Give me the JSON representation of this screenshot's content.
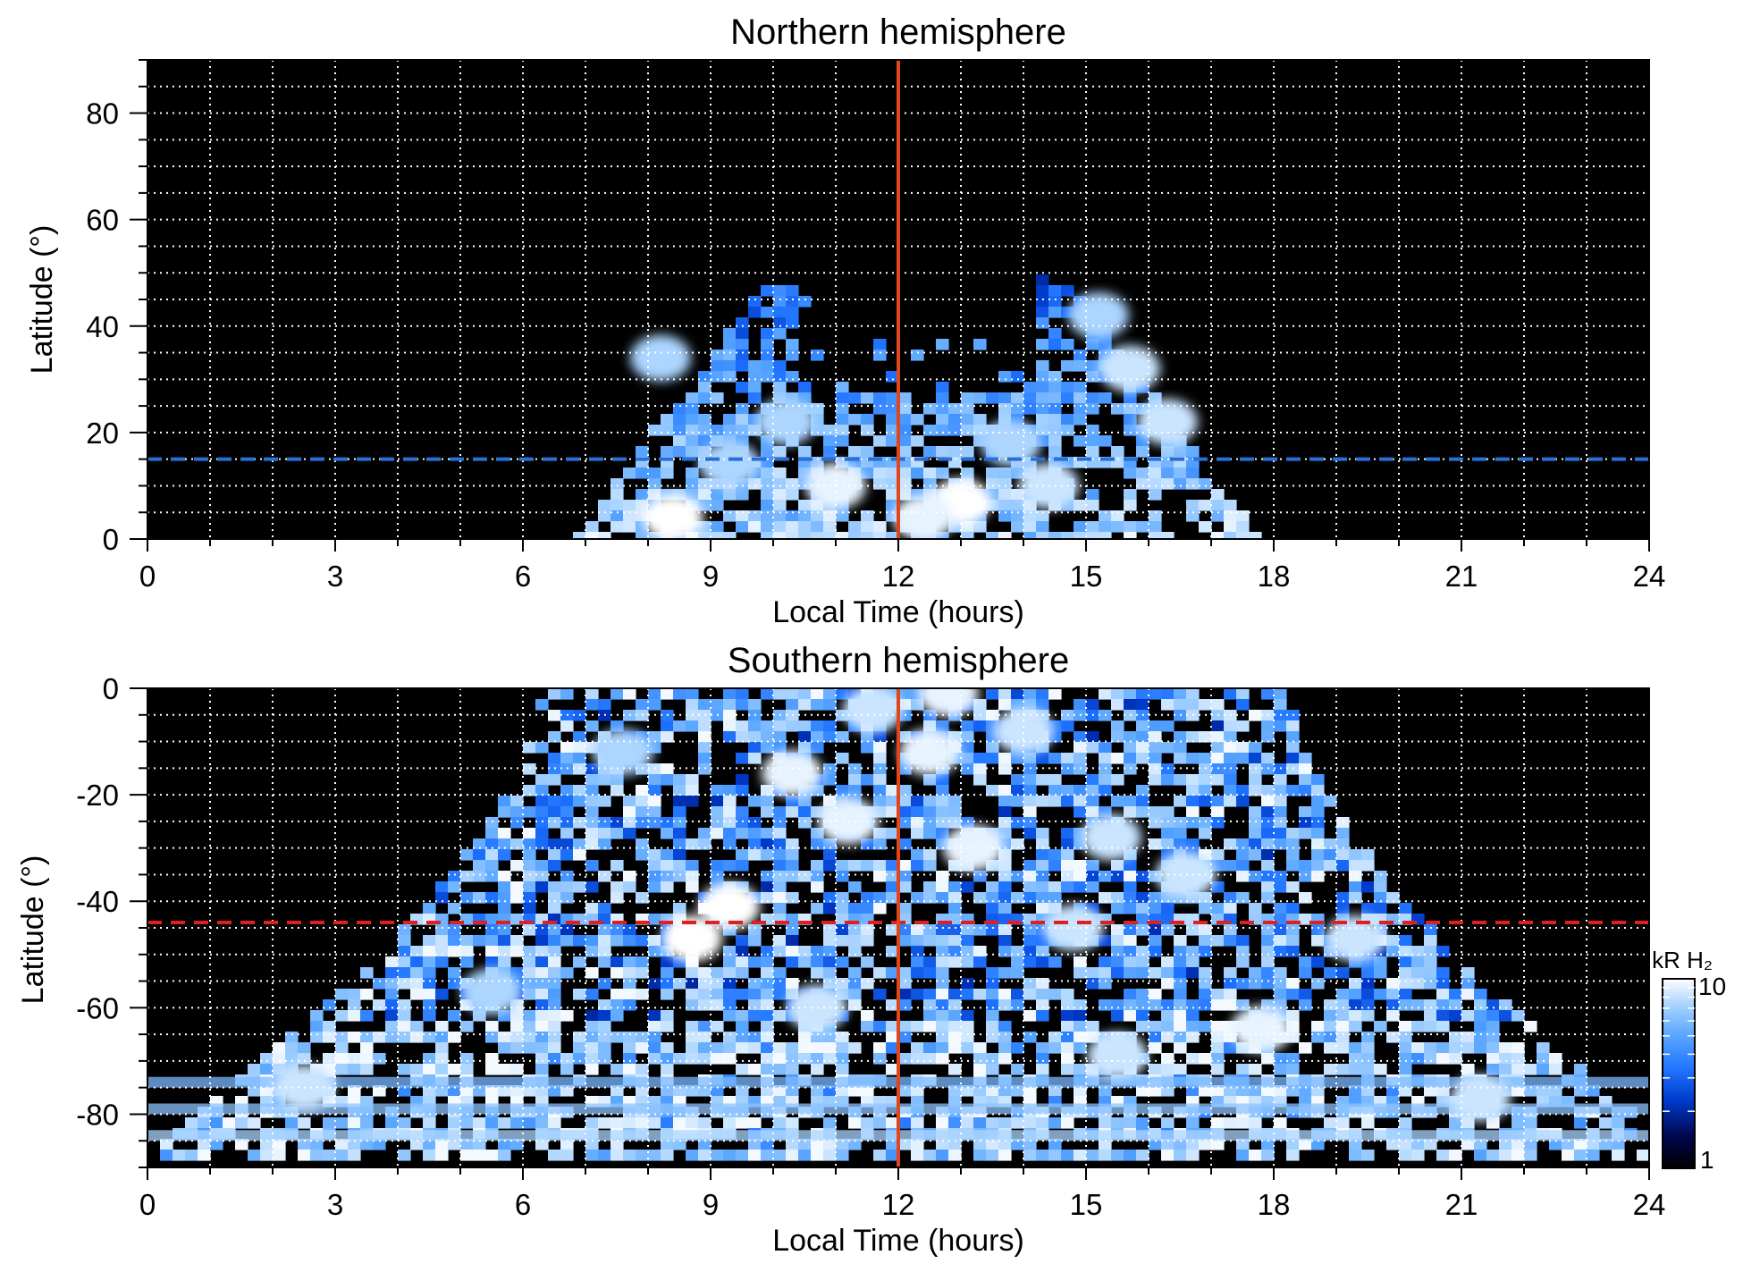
{
  "chart_data": [
    {
      "type": "heatmap",
      "title": "Northern hemisphere",
      "xlabel": "Local Time (hours)",
      "ylabel": "Latitude (°)",
      "xlim": [
        0,
        24
      ],
      "ylim": [
        0,
        90
      ],
      "xticks": [
        "0",
        "3",
        "6",
        "9",
        "12",
        "15",
        "18",
        "21",
        "24"
      ],
      "yticks": [
        "0",
        "20",
        "40",
        "60",
        "80"
      ],
      "grid": true,
      "reference_lines": [
        {
          "orientation": "vertical",
          "x": 12,
          "color": "#e0461c",
          "style": "solid"
        },
        {
          "orientation": "horizontal",
          "y": 15,
          "color": "#2a6fd6",
          "style": "dashed"
        }
      ],
      "emission_region": {
        "description_values": {
          "lt_min": 6.5,
          "lt_max": 18,
          "lat_max": 50
        },
        "bright_spots": [
          {
            "x": 8.4,
            "y": 4,
            "value": 10
          },
          {
            "x": 13.0,
            "y": 7,
            "value": 10
          },
          {
            "x": 11.0,
            "y": 10,
            "value": 9
          },
          {
            "x": 12.4,
            "y": 4,
            "value": 9
          },
          {
            "x": 14.4,
            "y": 10,
            "value": 8
          },
          {
            "x": 15.7,
            "y": 32,
            "value": 8
          },
          {
            "x": 8.2,
            "y": 34,
            "value": 7
          },
          {
            "x": 10.2,
            "y": 22,
            "value": 7
          },
          {
            "x": 16.3,
            "y": 22,
            "value": 8
          },
          {
            "x": 9.3,
            "y": 14,
            "value": 7
          },
          {
            "x": 15.2,
            "y": 42,
            "value": 7
          },
          {
            "x": 13.8,
            "y": 18,
            "value": 7
          }
        ]
      }
    },
    {
      "type": "heatmap",
      "title": "Southern hemisphere",
      "xlabel": "Local Time (hours)",
      "ylabel": "Latitude (°)",
      "xlim": [
        0,
        24
      ],
      "ylim": [
        -90,
        0
      ],
      "xticks": [
        "0",
        "3",
        "6",
        "9",
        "12",
        "15",
        "18",
        "21",
        "24"
      ],
      "yticks": [
        "0",
        "-20",
        "-40",
        "-60",
        "-80"
      ],
      "grid": true,
      "reference_lines": [
        {
          "orientation": "vertical",
          "x": 12,
          "color": "#e0461c",
          "style": "solid"
        },
        {
          "orientation": "horizontal",
          "y": -44,
          "color": "#e02020",
          "style": "dashed"
        }
      ],
      "emission_region": {
        "description_values": {
          "lt_min_equator": 6.2,
          "lt_max_equator": 18.3,
          "lat_min": -86
        },
        "bright_spots": [
          {
            "x": 8.7,
            "y": -47,
            "value": 10
          },
          {
            "x": 9.3,
            "y": -41,
            "value": 10
          },
          {
            "x": 10.3,
            "y": -16,
            "value": 9
          },
          {
            "x": 12.5,
            "y": -12,
            "value": 9
          },
          {
            "x": 13.2,
            "y": -30,
            "value": 9
          },
          {
            "x": 11.2,
            "y": -25,
            "value": 9
          },
          {
            "x": 10.7,
            "y": -60,
            "value": 8
          },
          {
            "x": 15.4,
            "y": -28,
            "value": 8
          },
          {
            "x": 17.8,
            "y": -64,
            "value": 9
          },
          {
            "x": 14.8,
            "y": -45,
            "value": 8
          },
          {
            "x": 16.6,
            "y": -35,
            "value": 8
          },
          {
            "x": 19.3,
            "y": -47,
            "value": 8
          },
          {
            "x": 15.5,
            "y": -69,
            "value": 8
          },
          {
            "x": 7.6,
            "y": -12,
            "value": 7
          },
          {
            "x": 14.0,
            "y": -8,
            "value": 8
          },
          {
            "x": 5.5,
            "y": -57,
            "value": 7
          },
          {
            "x": 2.5,
            "y": -75,
            "value": 8
          },
          {
            "x": 21.3,
            "y": -77,
            "value": 8
          },
          {
            "x": 12.8,
            "y": -1,
            "value": 9
          },
          {
            "x": 11.6,
            "y": -4,
            "value": 8
          }
        ]
      }
    }
  ],
  "colorbar": {
    "label": "kR H₂",
    "min_label": "1",
    "max_label": "10",
    "scale": "log",
    "colors": [
      "#000000",
      "#00064d",
      "#0038c8",
      "#1f73ff",
      "#5aa6ff",
      "#a6d2ff",
      "#ffffff"
    ]
  }
}
